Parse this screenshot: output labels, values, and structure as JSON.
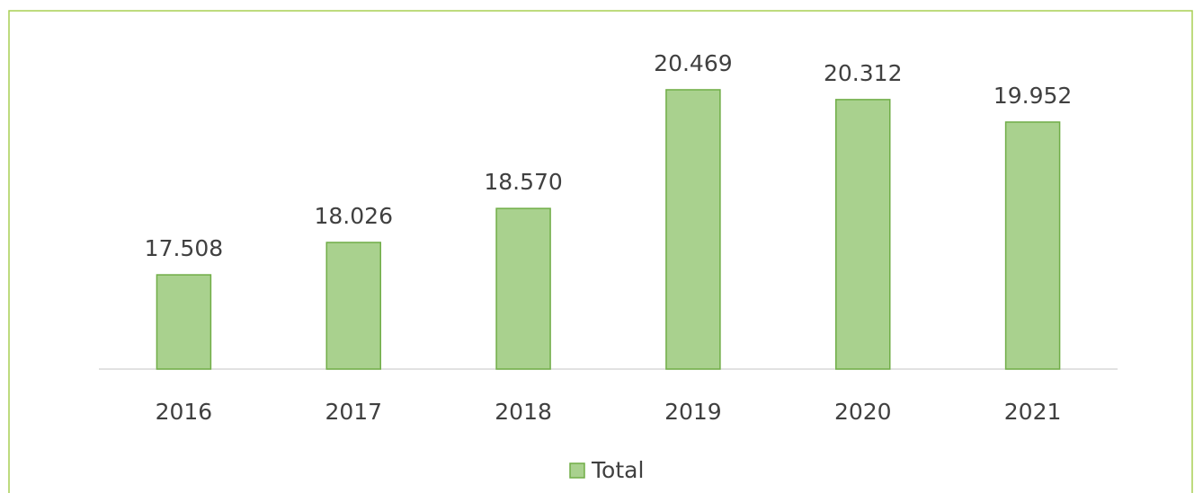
{
  "chart_data": {
    "type": "bar",
    "categories": [
      "2016",
      "2017",
      "2018",
      "2019",
      "2020",
      "2021"
    ],
    "series": [
      {
        "name": "Total",
        "color": "#a9d18e",
        "values": [
          17508,
          18026,
          18570,
          20469,
          20312,
          19952
        ],
        "value_labels": [
          "17.508",
          "18.026",
          "18.570",
          "20.469",
          "20.312",
          "19.952"
        ]
      }
    ],
    "ylim": [
      16000,
      21000
    ],
    "legend": "bottom"
  }
}
